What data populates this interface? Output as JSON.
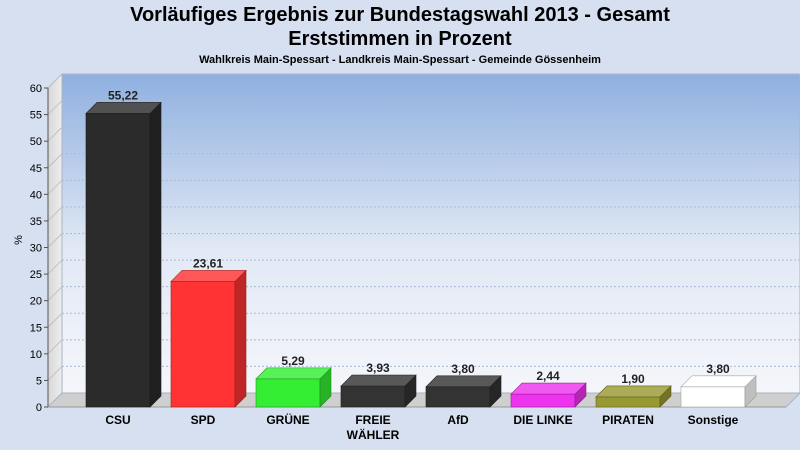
{
  "chart_data": {
    "type": "bar",
    "title": "Vorläufiges Ergebnis zur Bundestagswahl 2013 - Gesamt",
    "title_line2": "Erststimmen in Prozent",
    "subtitle": "Wahlkreis Main-Spessart - Landkreis Main-Spessart - Gemeinde Gössenheim",
    "ylabel": "%",
    "ylim": [
      0,
      60
    ],
    "yticks": [
      0,
      5,
      10,
      15,
      20,
      25,
      30,
      35,
      40,
      45,
      50,
      55,
      60
    ],
    "categories": [
      "CSU",
      "SPD",
      "GRÜNE",
      "FREIE WÄHLER",
      "AfD",
      "DIE LINKE",
      "PIRATEN",
      "Sonstige"
    ],
    "category_lines": [
      [
        "CSU"
      ],
      [
        "SPD"
      ],
      [
        "GRÜNE"
      ],
      [
        "FREIE",
        "WÄHLER"
      ],
      [
        "AfD"
      ],
      [
        "DIE LINKE"
      ],
      [
        "PIRATEN"
      ],
      [
        "Sonstige"
      ]
    ],
    "values": [
      55.22,
      23.61,
      5.29,
      3.93,
      3.8,
      2.44,
      1.9,
      3.8
    ],
    "value_labels": [
      "55,22",
      "23,61",
      "5,29",
      "3,93",
      "3,80",
      "2,44",
      "1,90",
      "3,80"
    ],
    "colors": [
      "#2b2b2b",
      "#ff3333",
      "#33ee33",
      "#333333",
      "#333333",
      "#ee33ee",
      "#999933",
      "#ffffff"
    ],
    "grid": true,
    "legend": "none"
  }
}
